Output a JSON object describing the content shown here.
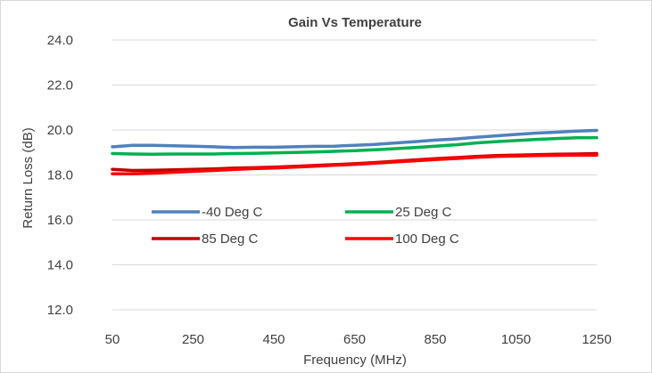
{
  "chart_data": {
    "type": "line",
    "title": "Gain Vs Temperature",
    "xlabel": "Frequency (MHz)",
    "ylabel": "Return Loss (dB)",
    "xlim": [
      50,
      1250
    ],
    "ylim": [
      12.0,
      24.0
    ],
    "x_ticks": [
      "50",
      "250",
      "450",
      "650",
      "850",
      "1050",
      "1250"
    ],
    "y_ticks": [
      "12.0",
      "14.0",
      "16.0",
      "18.0",
      "20.0",
      "22.0",
      "24.0"
    ],
    "grid": "horizontal",
    "legend_position": "inside-bottom",
    "x": [
      50,
      100,
      150,
      200,
      250,
      300,
      350,
      400,
      450,
      500,
      550,
      600,
      650,
      700,
      750,
      800,
      850,
      900,
      950,
      1000,
      1050,
      1100,
      1150,
      1200,
      1250
    ],
    "series": [
      {
        "name": "-40 Deg C",
        "color": "#4f81bd",
        "values": [
          19.25,
          19.32,
          19.32,
          19.3,
          19.28,
          19.25,
          19.22,
          19.23,
          19.23,
          19.25,
          19.27,
          19.28,
          19.32,
          19.36,
          19.42,
          19.48,
          19.55,
          19.6,
          19.67,
          19.74,
          19.8,
          19.86,
          19.9,
          19.95,
          19.98
        ]
      },
      {
        "name": "25 Deg C",
        "color": "#00b050",
        "values": [
          18.95,
          18.93,
          18.92,
          18.93,
          18.93,
          18.93,
          18.95,
          18.96,
          18.98,
          19.0,
          19.02,
          19.05,
          19.08,
          19.12,
          19.17,
          19.22,
          19.28,
          19.34,
          19.42,
          19.48,
          19.53,
          19.58,
          19.62,
          19.65,
          19.66
        ]
      },
      {
        "name": "85 Deg C",
        "color": "#c00000",
        "values": [
          18.25,
          18.2,
          18.21,
          18.23,
          18.25,
          18.27,
          18.3,
          18.32,
          18.35,
          18.38,
          18.42,
          18.46,
          18.5,
          18.55,
          18.61,
          18.67,
          18.72,
          18.77,
          18.82,
          18.86,
          18.88,
          18.9,
          18.92,
          18.93,
          18.95
        ]
      },
      {
        "name": "100 Deg C",
        "color": "#ff0000",
        "values": [
          18.05,
          18.05,
          18.08,
          18.12,
          18.16,
          18.2,
          18.24,
          18.28,
          18.31,
          18.35,
          18.39,
          18.43,
          18.47,
          18.52,
          18.58,
          18.63,
          18.68,
          18.73,
          18.78,
          18.82,
          18.84,
          18.86,
          18.87,
          18.88,
          18.88
        ]
      }
    ]
  }
}
